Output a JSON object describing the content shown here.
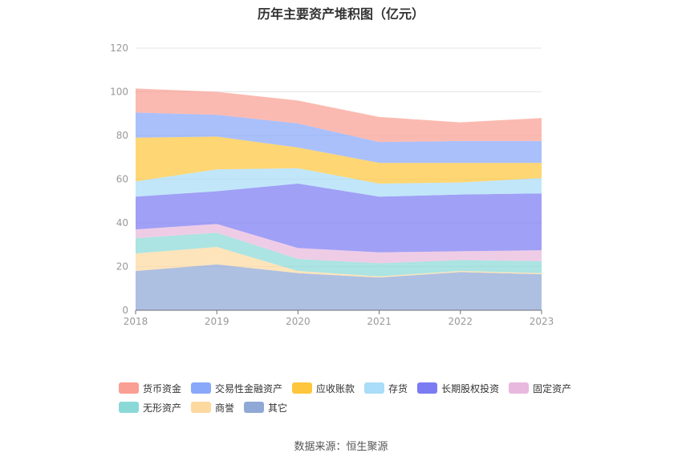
{
  "title": "历年主要资产堆积图（亿元）",
  "source": "数据来源：恒生聚源",
  "chart_data": {
    "type": "area",
    "stacked": true,
    "x": [
      "2018",
      "2019",
      "2020",
      "2021",
      "2022",
      "2023"
    ],
    "ylim": [
      0,
      120
    ],
    "yticks": [
      0,
      20,
      40,
      60,
      80,
      100,
      120
    ],
    "grid": true,
    "legend_position": "bottom",
    "series": [
      {
        "name": "其它",
        "color": "#8fa8d6",
        "values": [
          18,
          21,
          17,
          15,
          17.5,
          16.5
        ]
      },
      {
        "name": "商誉",
        "color": "#fdd9a0",
        "values": [
          8,
          8,
          1,
          0.5,
          0.5,
          0.5
        ]
      },
      {
        "name": "无形资产",
        "color": "#8ad9d7",
        "values": [
          7,
          6.5,
          5.5,
          6,
          5,
          5.5
        ]
      },
      {
        "name": "固定资产",
        "color": "#e9b8dd",
        "values": [
          4,
          4,
          5,
          5,
          4,
          5
        ]
      },
      {
        "name": "长期股权投资",
        "color": "#7b7cf3",
        "values": [
          15,
          15,
          29.5,
          25.5,
          26,
          26
        ]
      },
      {
        "name": "存货",
        "color": "#a9ddf8",
        "values": [
          7,
          10,
          7,
          6,
          5.5,
          7
        ]
      },
      {
        "name": "应收账款",
        "color": "#fec63d",
        "values": [
          20,
          15,
          9.5,
          9.5,
          9,
          7
        ]
      },
      {
        "name": "交易性金融资产",
        "color": "#89a8f9",
        "values": [
          11.5,
          10,
          11,
          9.5,
          10,
          10
        ]
      },
      {
        "name": "货币资金",
        "color": "#fa9f93",
        "values": [
          11,
          10.5,
          10.5,
          11.5,
          8.5,
          10.5
        ]
      }
    ]
  },
  "legend": [
    {
      "label": "货币资金",
      "color": "#fa9f93"
    },
    {
      "label": "交易性金融资产",
      "color": "#89a8f9"
    },
    {
      "label": "应收账款",
      "color": "#fec63d"
    },
    {
      "label": "存货",
      "color": "#a9ddf8"
    },
    {
      "label": "长期股权投资",
      "color": "#7b7cf3"
    },
    {
      "label": "固定资产",
      "color": "#e9b8dd"
    },
    {
      "label": "无形资产",
      "color": "#8ad9d7"
    },
    {
      "label": "商誉",
      "color": "#fdd9a0"
    },
    {
      "label": "其它",
      "color": "#8fa8d6"
    }
  ]
}
